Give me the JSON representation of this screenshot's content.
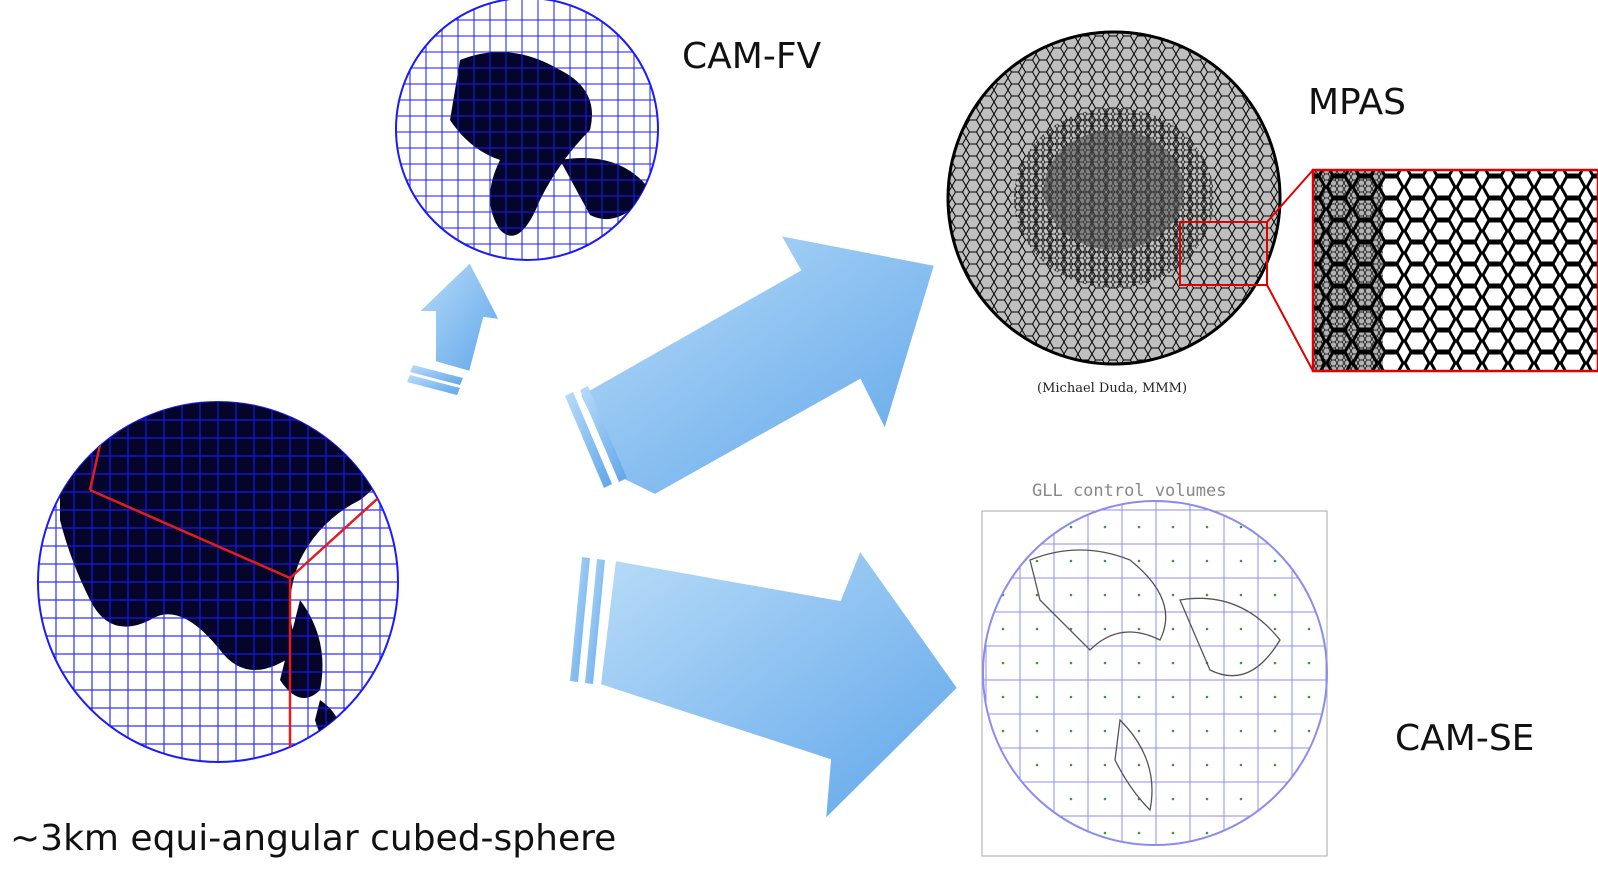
{
  "labels": {
    "cam_fv": "CAM-FV",
    "mpas": "MPAS",
    "mpas_credit": "(Michael Duda, MMM)",
    "gll_title": "GLL control volumes",
    "cam_se": "CAM-SE",
    "cubed_sphere": "~3km equi-angular cubed-sphere"
  },
  "colors": {
    "grid_blue": "#1a1aff",
    "cube_edge": "#e11d1d",
    "land": "#05052a",
    "arrow_fill": "#8ec3f2",
    "zoom_box": "#e00000",
    "gll_grid": "#8c8cf0"
  },
  "icons": [
    "cubed-sphere-globe",
    "cam-fv-globe",
    "mpas-mesh-globe",
    "mpas-zoom-inset",
    "cam-se-globe",
    "arrow-up",
    "arrow-to-mpas",
    "arrow-to-cam-se"
  ]
}
